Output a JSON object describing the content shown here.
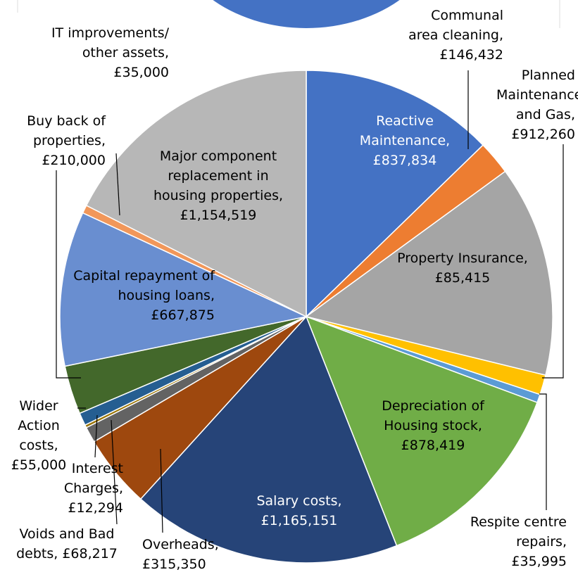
{
  "chart_data": {
    "type": "pie",
    "categories": [
      "Reactive Maintenance,",
      "Communal area cleaning,",
      "Planned Maintenance and Gas,",
      "Property Insurance,",
      "Respite centre repairs,",
      "Depreciation of Housing stock,",
      "Salary costs,",
      "Overheads,",
      "Voids and Bad debts,",
      "Interest Charges,",
      "Wider Action costs,",
      "Buy back of properties,",
      "Capital repayment of housing loans,",
      "IT improvements/ other assets,",
      "Major component replacement in housing properties,"
    ],
    "values": [
      837834,
      146432,
      912260,
      85415,
      35995,
      878419,
      1165151,
      315350,
      68217,
      12294,
      55000,
      210000,
      667875,
      35000,
      1154519
    ],
    "value_labels": [
      "£837,834",
      "£146,432",
      "£912,260",
      "£85,415",
      "£35,995",
      "£878,419",
      "£1,165,151",
      "£315,350",
      "£68,217",
      "£12,294",
      "£55,000",
      "£210,000",
      "£667,875",
      "£35,000",
      "£1,154,519"
    ],
    "colors": [
      "#4472c4",
      "#ed7d31",
      "#a5a5a5",
      "#ffc000",
      "#5b9bd5",
      "#70ad47",
      "#264478",
      "#9e480e",
      "#636363",
      "#997300",
      "#255e91",
      "#43682b",
      "#698ed0",
      "#f1975a",
      "#b7b7b7"
    ]
  }
}
